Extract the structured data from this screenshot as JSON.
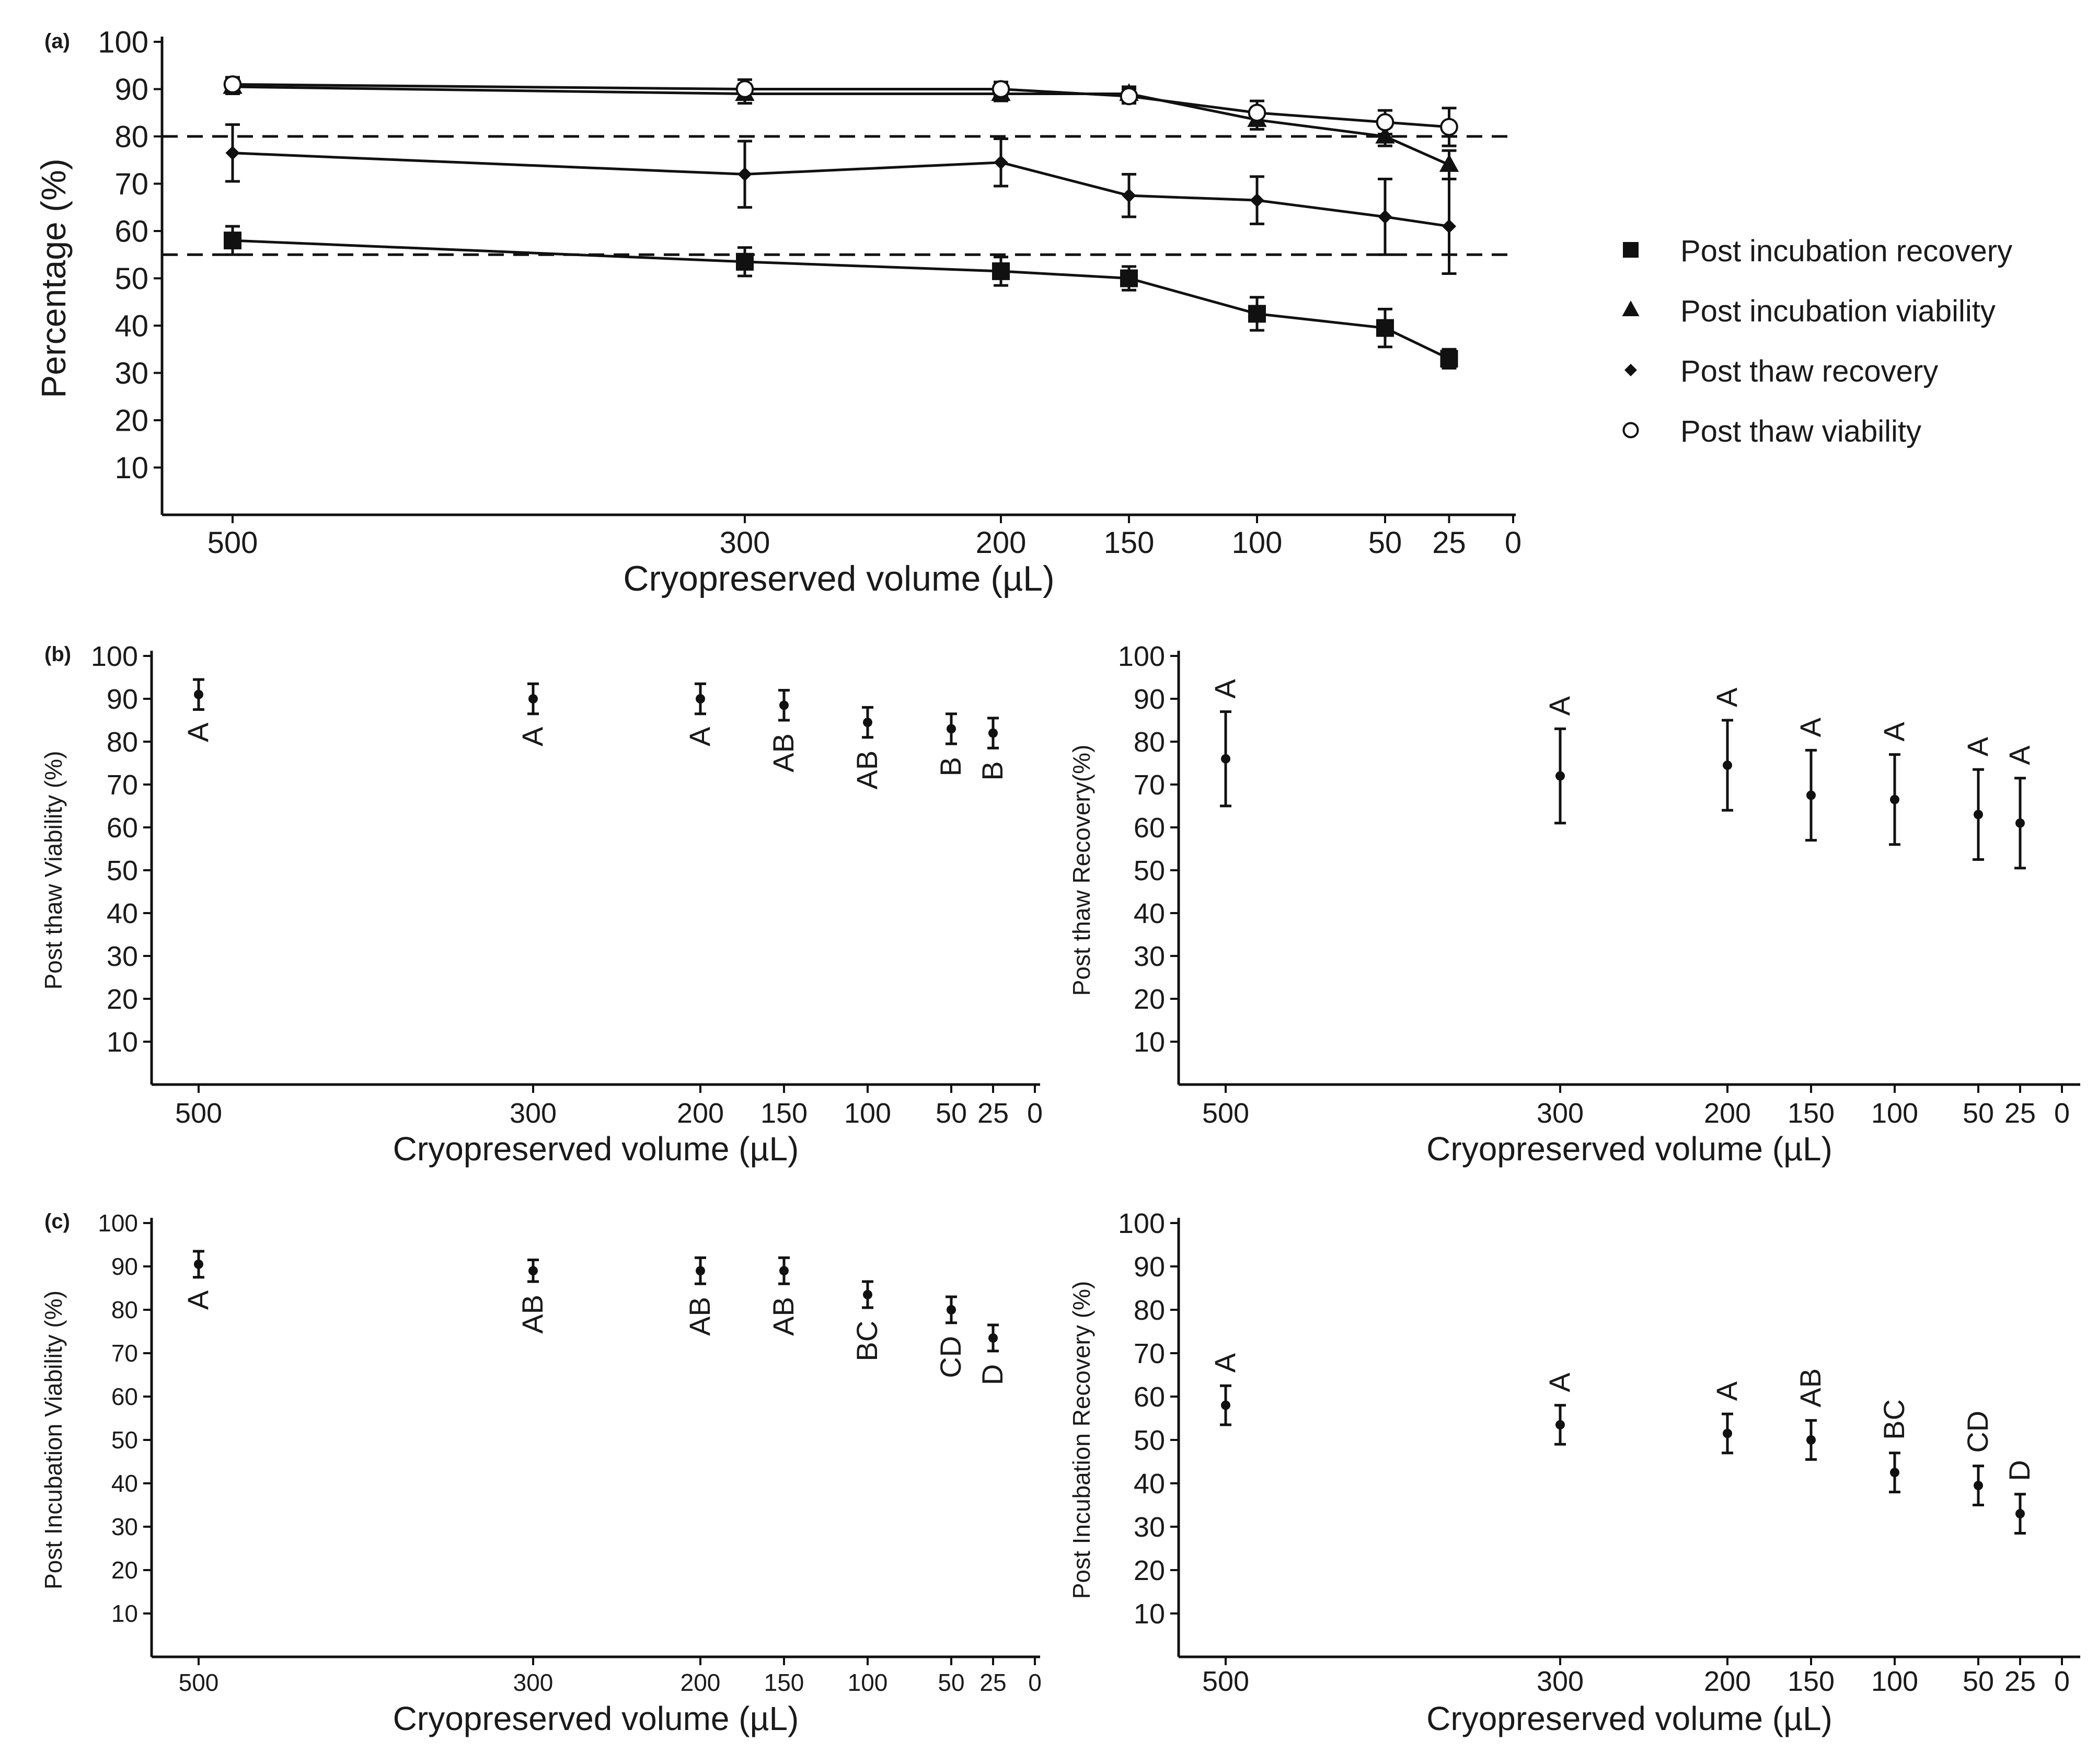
{
  "chart_data": [
    {
      "id": "a",
      "panel_label": "(a)",
      "type": "line",
      "title": "",
      "xlabel": "Cryopreserved volume (µL)",
      "ylabel": "Percentage (%)",
      "x_ticks": [
        "500",
        "300",
        "200",
        "150",
        "100",
        "50",
        "25",
        "0"
      ],
      "y_ticks": [
        "100",
        "90",
        "80",
        "70",
        "60",
        "50",
        "40",
        "30",
        "20",
        "10"
      ],
      "ylim": [
        0,
        100
      ],
      "x_scale": "reversed volume, ticks at 500, 300, 200, 150, 100, 50, 25, 0",
      "reference_lines": [
        80,
        55
      ],
      "x": [
        500,
        300,
        200,
        150,
        100,
        50,
        25
      ],
      "series": [
        {
          "name": "Post incubation recovery",
          "marker": "square",
          "values": [
            58,
            53.5,
            51.5,
            50,
            42.5,
            39.5,
            33
          ],
          "errors": [
            3,
            3,
            3,
            2.5,
            3.5,
            4,
            2
          ]
        },
        {
          "name": "Post incubation viability",
          "marker": "triangle",
          "values": [
            90.5,
            89,
            89,
            89,
            83.5,
            80,
            74
          ],
          "errors": [
            1.5,
            2,
            1.5,
            1.5,
            2,
            2,
            3
          ]
        },
        {
          "name": "Post thaw recovery",
          "marker": "diamond",
          "values": [
            76.5,
            72,
            74.5,
            67.5,
            66.5,
            63,
            61
          ],
          "errors": [
            6,
            7,
            5,
            4.5,
            5,
            8,
            10
          ]
        },
        {
          "name": "Post thaw viability",
          "marker": "circle",
          "values": [
            91,
            90,
            90,
            88.5,
            85,
            83,
            82
          ],
          "errors": [
            1.5,
            2,
            1.5,
            1.5,
            2.5,
            2.5,
            4
          ]
        }
      ]
    },
    {
      "id": "b1",
      "panel_label": "(b)",
      "type": "scatter",
      "xlabel": "Cryopreserved volume (µL)",
      "ylabel": "Post thaw Viability (%)",
      "x_ticks": [
        "500",
        "300",
        "200",
        "150",
        "100",
        "50",
        "25",
        "0"
      ],
      "y_ticks": [
        "100",
        "90",
        "80",
        "70",
        "60",
        "50",
        "40",
        "30",
        "20",
        "10"
      ],
      "ylim": [
        0,
        100
      ],
      "letters_position": "below",
      "points": [
        {
          "x": 500,
          "mean": 91,
          "error": 3.5,
          "letter": "A"
        },
        {
          "x": 300,
          "mean": 90,
          "error": 3.5,
          "letter": "A"
        },
        {
          "x": 200,
          "mean": 90,
          "error": 3.5,
          "letter": "A"
        },
        {
          "x": 150,
          "mean": 88.5,
          "error": 3.5,
          "letter": "AB"
        },
        {
          "x": 100,
          "mean": 84.5,
          "error": 3.5,
          "letter": "AB"
        },
        {
          "x": 50,
          "mean": 83,
          "error": 3.5,
          "letter": "B"
        },
        {
          "x": 25,
          "mean": 82,
          "error": 3.5,
          "letter": "B"
        }
      ]
    },
    {
      "id": "b2",
      "panel_label": "",
      "type": "scatter",
      "xlabel": "Cryopreserved volume (µL)",
      "ylabel": "Post thaw Recovery(%)",
      "x_ticks": [
        "500",
        "300",
        "200",
        "150",
        "100",
        "50",
        "25",
        "0"
      ],
      "y_ticks": [
        "100",
        "90",
        "80",
        "70",
        "60",
        "50",
        "40",
        "30",
        "20",
        "10"
      ],
      "ylim": [
        0,
        100
      ],
      "letters_position": "above",
      "points": [
        {
          "x": 500,
          "mean": 76,
          "error": 11,
          "letter": "A"
        },
        {
          "x": 300,
          "mean": 72,
          "error": 11,
          "letter": "A"
        },
        {
          "x": 200,
          "mean": 74.5,
          "error": 10.5,
          "letter": "A"
        },
        {
          "x": 150,
          "mean": 67.5,
          "error": 10.5,
          "letter": "A"
        },
        {
          "x": 100,
          "mean": 66.5,
          "error": 10.5,
          "letter": "A"
        },
        {
          "x": 50,
          "mean": 63,
          "error": 10.5,
          "letter": "A"
        },
        {
          "x": 25,
          "mean": 61,
          "error": 10.5,
          "letter": "A"
        }
      ]
    },
    {
      "id": "c1",
      "panel_label": "(c)",
      "type": "scatter",
      "xlabel": "Cryopreserved volume (µL)",
      "ylabel": "Post Incubation Viability (%)",
      "x_ticks": [
        "500",
        "300",
        "200",
        "150",
        "100",
        "50",
        "25",
        "0"
      ],
      "y_ticks": [
        "100",
        "90",
        "80",
        "70",
        "60",
        "50",
        "40",
        "30",
        "20",
        "10"
      ],
      "ylim": [
        0,
        100
      ],
      "letters_position": "below",
      "points": [
        {
          "x": 500,
          "mean": 90.5,
          "error": 3,
          "letter": "A"
        },
        {
          "x": 300,
          "mean": 89,
          "error": 2.5,
          "letter": "AB"
        },
        {
          "x": 200,
          "mean": 89,
          "error": 3,
          "letter": "AB"
        },
        {
          "x": 150,
          "mean": 89,
          "error": 3,
          "letter": "AB"
        },
        {
          "x": 100,
          "mean": 83.5,
          "error": 3,
          "letter": "BC"
        },
        {
          "x": 50,
          "mean": 80,
          "error": 3,
          "letter": "CD"
        },
        {
          "x": 25,
          "mean": 73.5,
          "error": 3,
          "letter": "D"
        }
      ]
    },
    {
      "id": "c2",
      "panel_label": "",
      "type": "scatter",
      "xlabel": "Cryopreserved volume (µL)",
      "ylabel": "Post Incubation Recovery (%)",
      "x_ticks": [
        "500",
        "300",
        "200",
        "150",
        "100",
        "50",
        "25",
        "0"
      ],
      "y_ticks": [
        "100",
        "90",
        "80",
        "70",
        "60",
        "50",
        "40",
        "30",
        "20",
        "10"
      ],
      "ylim": [
        0,
        100
      ],
      "letters_position": "above",
      "points": [
        {
          "x": 500,
          "mean": 58,
          "error": 4.5,
          "letter": "A"
        },
        {
          "x": 300,
          "mean": 53.5,
          "error": 4.5,
          "letter": "A"
        },
        {
          "x": 200,
          "mean": 51.5,
          "error": 4.5,
          "letter": "A"
        },
        {
          "x": 150,
          "mean": 50,
          "error": 4.5,
          "letter": "AB"
        },
        {
          "x": 100,
          "mean": 42.5,
          "error": 4.5,
          "letter": "BC"
        },
        {
          "x": 50,
          "mean": 39.5,
          "error": 4.5,
          "letter": "CD"
        },
        {
          "x": 25,
          "mean": 33,
          "error": 4.5,
          "letter": "D"
        }
      ]
    }
  ]
}
